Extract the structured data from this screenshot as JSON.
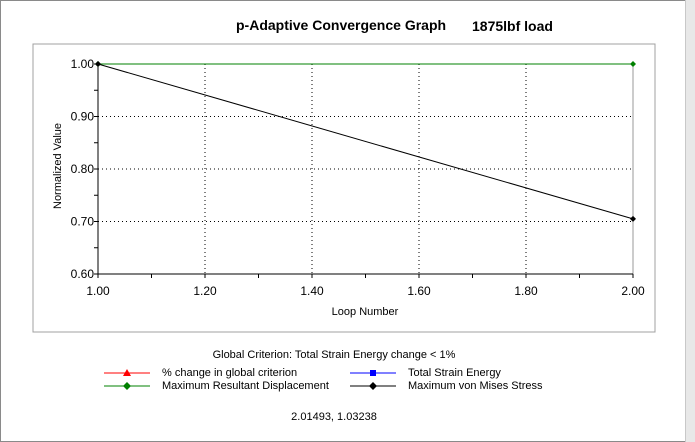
{
  "header": {
    "title": "p-Adaptive Convergence Graph",
    "load": "1875lbf load"
  },
  "legend": {
    "title": "Global Criterion: Total Strain Energy change < 1%",
    "items": [
      {
        "label": "% change in global criterion",
        "color": "#ff0000",
        "marker": "triangle"
      },
      {
        "label": "Total Strain Energy",
        "color": "#0000ff",
        "marker": "square"
      },
      {
        "label": "Maximum Resultant Displacement",
        "color": "#008000",
        "marker": "diamond"
      },
      {
        "label": "Maximum von Mises Stress",
        "color": "#000000",
        "marker": "diamond"
      }
    ]
  },
  "cursor_readout": "2.01493, 1.03238",
  "chart_data": {
    "type": "line",
    "xlabel": "Loop Number",
    "ylabel": "Normalized Value",
    "xlim": [
      1.0,
      2.0
    ],
    "ylim": [
      0.6,
      1.0
    ],
    "xticks": [
      "1.00",
      "1.20",
      "1.40",
      "1.60",
      "1.80",
      "2.00"
    ],
    "yticks": [
      "0.60",
      "0.70",
      "0.80",
      "0.90",
      "1.00"
    ],
    "grid": true,
    "series": [
      {
        "name": "Maximum Resultant Displacement",
        "color": "#008000",
        "marker": "diamond",
        "x": [
          1.0,
          2.0
        ],
        "y": [
          1.0,
          1.0
        ]
      },
      {
        "name": "Maximum von Mises Stress",
        "color": "#000000",
        "marker": "diamond",
        "x": [
          1.0,
          2.0
        ],
        "y": [
          1.0,
          0.705
        ]
      }
    ]
  }
}
